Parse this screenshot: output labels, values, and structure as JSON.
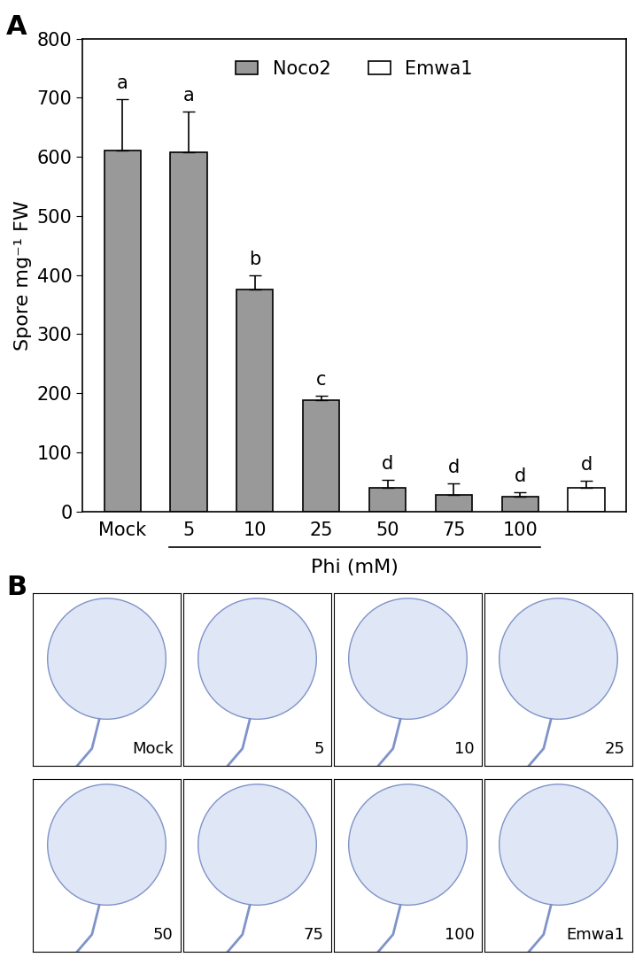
{
  "chart_data": {
    "type": "bar",
    "panel_label": "A",
    "categories": [
      "Mock",
      "5",
      "10",
      "25",
      "50",
      "75",
      "100",
      null
    ],
    "series": [
      {
        "name": "Noco2",
        "color": "#999999",
        "values": [
          610,
          607,
          375,
          188,
          40,
          28,
          25,
          null
        ],
        "errors": [
          88,
          70,
          25,
          8,
          14,
          20,
          8,
          null
        ]
      },
      {
        "name": "Emwa1",
        "color": "#ffffff",
        "values": [
          null,
          null,
          null,
          null,
          null,
          null,
          null,
          40
        ],
        "errors": [
          null,
          null,
          null,
          null,
          null,
          null,
          null,
          12
        ]
      }
    ],
    "significance_letters": [
      "a",
      "a",
      "b",
      "c",
      "d",
      "d",
      "d",
      "d"
    ],
    "ylabel": "Spore mg⁻¹ FW",
    "group_label": "Phi (mM)",
    "ylim": [
      0,
      800
    ],
    "yticks": [
      0,
      100,
      200,
      300,
      400,
      500,
      600,
      700,
      800
    ],
    "grid": false,
    "legend": "upper center"
  },
  "image_panel": {
    "panel_label": "B",
    "labels": [
      "Mock",
      "5",
      "10",
      "25",
      "50",
      "75",
      "100",
      "Emwa1"
    ]
  }
}
